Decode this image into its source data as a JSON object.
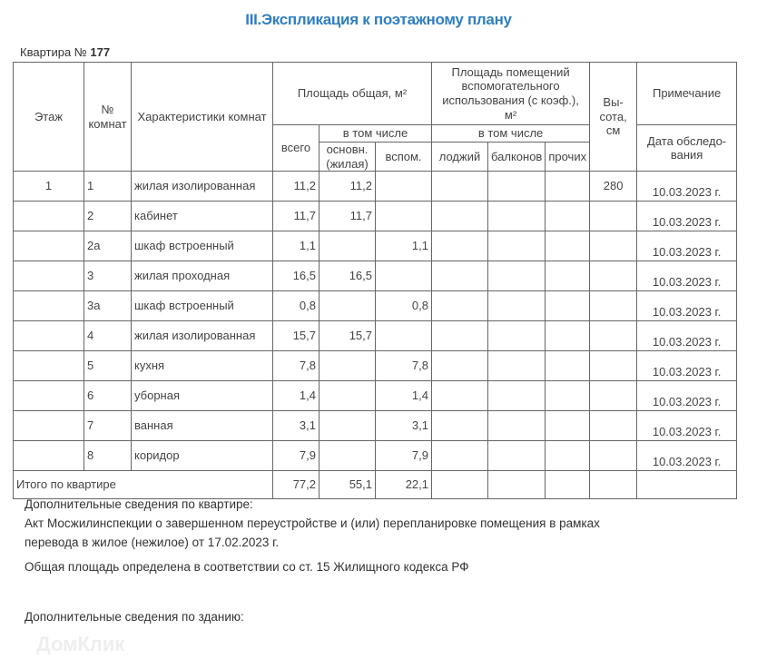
{
  "title": "III.Экспликация к поэтажному плану",
  "apartment_label": "Квартира №",
  "apartment_number": "177",
  "headers": {
    "floor": "Этаж",
    "room_no": "№ комнат",
    "characteristics": "Характеристики комнат",
    "total_area": "Площадь общая, м²",
    "aux_area": "Площадь помещений вспомогательного использования (с коэф.), м²",
    "height": "Вы-сота, см",
    "note": "Примечание",
    "incl1": "в том числе",
    "incl2": "в том числе",
    "all": "всего",
    "main": "основн. (жилая)",
    "aux": "вспом.",
    "loggia": "лоджий",
    "balcony": "балконов",
    "other": "прочих",
    "survey_date": "Дата обследо-вания"
  },
  "rows": [
    {
      "floor": "1",
      "no": "1",
      "name": "жилая изолированная",
      "total": "11,2",
      "main": "11,2",
      "aux": "",
      "height": "280",
      "date": "10.03.2023 г."
    },
    {
      "floor": "",
      "no": "2",
      "name": "кабинет",
      "total": "11,7",
      "main": "11,7",
      "aux": "",
      "height": "",
      "date": "10.03.2023 г."
    },
    {
      "floor": "",
      "no": "2а",
      "name": "шкаф встроенный",
      "total": "1,1",
      "main": "",
      "aux": "1,1",
      "height": "",
      "date": "10.03.2023 г."
    },
    {
      "floor": "",
      "no": "3",
      "name": "жилая проходная",
      "total": "16,5",
      "main": "16,5",
      "aux": "",
      "height": "",
      "date": "10.03.2023 г."
    },
    {
      "floor": "",
      "no": "3а",
      "name": "шкаф встроенный",
      "total": "0,8",
      "main": "",
      "aux": "0,8",
      "height": "",
      "date": "10.03.2023 г."
    },
    {
      "floor": "",
      "no": "4",
      "name": "жилая изолированная",
      "total": "15,7",
      "main": "15,7",
      "aux": "",
      "height": "",
      "date": "10.03.2023 г."
    },
    {
      "floor": "",
      "no": "5",
      "name": "кухня",
      "total": "7,8",
      "main": "",
      "aux": "7,8",
      "height": "",
      "date": "10.03.2023 г."
    },
    {
      "floor": "",
      "no": "6",
      "name": "уборная",
      "total": "1,4",
      "main": "",
      "aux": "1,4",
      "height": "",
      "date": "10.03.2023 г."
    },
    {
      "floor": "",
      "no": "7",
      "name": "ванная",
      "total": "3,1",
      "main": "",
      "aux": "3,1",
      "height": "",
      "date": "10.03.2023 г."
    },
    {
      "floor": "",
      "no": "8",
      "name": "коридор",
      "total": "7,9",
      "main": "",
      "aux": "7,9",
      "height": "",
      "date": "10.03.2023 г."
    }
  ],
  "totals": {
    "label": "Итого по квартире",
    "total": "77,2",
    "main": "55,1",
    "aux": "22,1"
  },
  "notes": {
    "apartment_heading": "Дополнительные сведения по квартире:",
    "apartment_text_1": "Акт Мосжилинспекции о завершенном переустройстве и (или) перепланировке помещения в рамках",
    "apartment_text_2": "перевода в жилое (нежилое) от 17.02.2023 г.",
    "area_note": "Общая площадь определена в соответствии со ст. 15 Жилищного кодекса РФ",
    "building_heading": "Дополнительные сведения по зданию:"
  },
  "watermark": "ДомКлик",
  "colors": {
    "title": "#2f7fc0"
  }
}
